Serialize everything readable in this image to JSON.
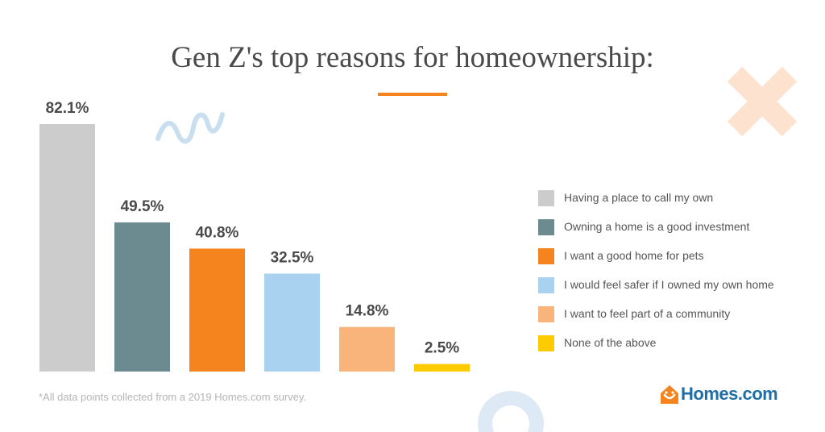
{
  "title": "Gen Z's top reasons for homeownership:",
  "footnote": "*All data points collected from a 2019 Homes.com survey.",
  "brand": {
    "text": "Homes.com",
    "icon": "home-logo-icon"
  },
  "colors": {
    "title_accent": "#f5841f",
    "squiggle": "#c9dff0",
    "cross": "#fde3cf",
    "circle": "#dde9f4",
    "brand": "#1f6fa5",
    "brand_icon": "#f5841f"
  },
  "chart_data": {
    "type": "bar",
    "title": "Gen Z's top reasons for homeownership:",
    "categories": [
      "Having a place to call my own",
      "Owning a home is a good investment",
      "I want a good home for pets",
      "I would feel safer if I owned my own home",
      "I want to feel part of a community",
      "None of the above"
    ],
    "values": [
      82.1,
      49.5,
      40.8,
      32.5,
      14.8,
      2.5
    ],
    "value_labels": [
      "82.1%",
      "49.5%",
      "40.8%",
      "32.5%",
      "14.8%",
      "2.5%"
    ],
    "colors": [
      "#cccccc",
      "#6b8b91",
      "#f5841f",
      "#a9d1f0",
      "#f8b47b",
      "#fecb00"
    ],
    "unit": "%",
    "ylim": [
      0,
      82.1
    ],
    "grid": false,
    "legend": "right"
  }
}
